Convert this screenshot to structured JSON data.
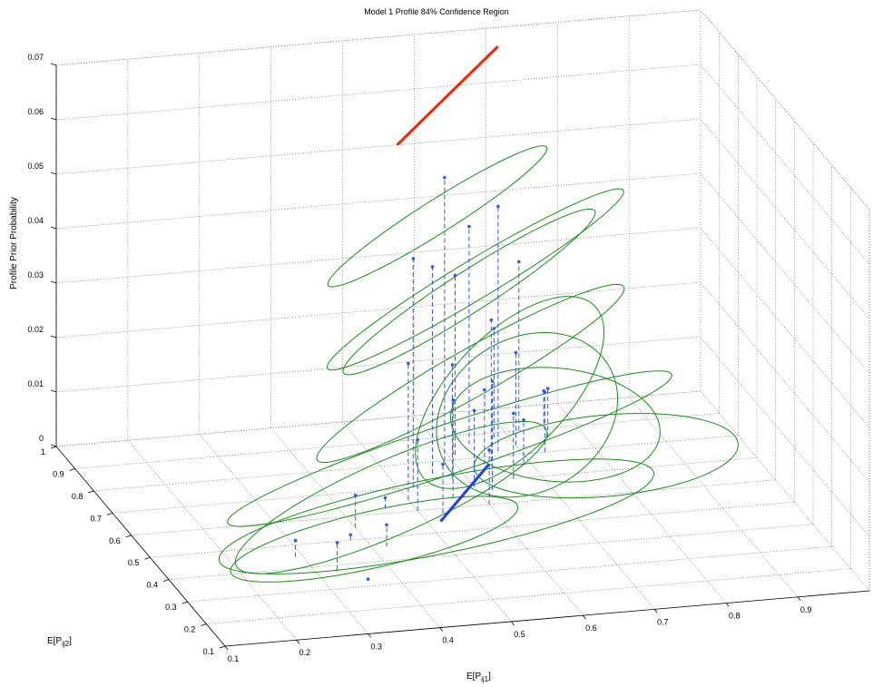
{
  "chart_data": {
    "type": "3d-line",
    "title": "Model 1 Profile 84% Confidence Region",
    "xlabel_main": "E[P",
    "xlabel_sub": "ij1",
    "xlabel_end": "]",
    "ylabel_main": "E[P",
    "ylabel_sub": "ij2",
    "ylabel_end": "]",
    "zlabel": "Profile Prior Probability",
    "x_ticks": [
      "0.1",
      "0.2",
      "0.3",
      "0.4",
      "0.5",
      "0.6",
      "0.7",
      "0.8",
      "0.9"
    ],
    "y_ticks": [
      "0.1",
      "0.2",
      "0.3",
      "0.4",
      "0.5",
      "0.6",
      "0.7",
      "0.8",
      "0.9",
      "1"
    ],
    "z_ticks": [
      "0",
      "0.01",
      "0.02",
      "0.03",
      "0.04",
      "0.05",
      "0.06",
      "0.07"
    ],
    "xlim": [
      0.1,
      1.0
    ],
    "ylim": [
      0.1,
      1.0
    ],
    "zlim": [
      0,
      0.07
    ],
    "grid": true,
    "colors": {
      "profiles": "#1a8c1a",
      "highlight_top": "#ff2200",
      "highlight_bottom": "#1f3cff",
      "stems": "#3355ee"
    },
    "stems": [
      {
        "x": 0.29,
        "y": 0.45,
        "z": 0.003
      },
      {
        "x": 0.33,
        "y": 0.38,
        "z": 0.005
      },
      {
        "x": 0.36,
        "y": 0.33,
        "z": 0.0
      },
      {
        "x": 0.38,
        "y": 0.5,
        "z": 0.001
      },
      {
        "x": 0.4,
        "y": 0.55,
        "z": 0.006
      },
      {
        "x": 0.42,
        "y": 0.46,
        "z": 0.004
      },
      {
        "x": 0.46,
        "y": 0.62,
        "z": 0.002
      },
      {
        "x": 0.5,
        "y": 0.65,
        "z": 0.025
      },
      {
        "x": 0.5,
        "y": 0.6,
        "z": 0.013
      },
      {
        "x": 0.52,
        "y": 0.7,
        "z": 0.042
      },
      {
        "x": 0.53,
        "y": 0.58,
        "z": 0.009
      },
      {
        "x": 0.56,
        "y": 0.75,
        "z": 0.038
      },
      {
        "x": 0.56,
        "y": 0.64,
        "z": 0.018
      },
      {
        "x": 0.58,
        "y": 0.72,
        "z": 0.021
      },
      {
        "x": 0.59,
        "y": 0.8,
        "z": 0.052
      },
      {
        "x": 0.6,
        "y": 0.6,
        "z": 0.01
      },
      {
        "x": 0.6,
        "y": 0.68,
        "z": 0.014
      },
      {
        "x": 0.61,
        "y": 0.82,
        "z": 0.033
      },
      {
        "x": 0.62,
        "y": 0.66,
        "z": 0.02
      },
      {
        "x": 0.63,
        "y": 0.74,
        "z": 0.015
      },
      {
        "x": 0.64,
        "y": 0.86,
        "z": 0.04
      },
      {
        "x": 0.65,
        "y": 0.78,
        "z": 0.026
      },
      {
        "x": 0.66,
        "y": 0.7,
        "z": 0.012
      },
      {
        "x": 0.67,
        "y": 0.82,
        "z": 0.045
      },
      {
        "x": 0.68,
        "y": 0.88,
        "z": 0.02
      },
      {
        "x": 0.69,
        "y": 0.76,
        "z": 0.008
      },
      {
        "x": 0.7,
        "y": 0.84,
        "z": 0.017
      },
      {
        "x": 0.72,
        "y": 0.9,
        "z": 0.031
      },
      {
        "x": 0.73,
        "y": 0.8,
        "z": 0.011
      },
      {
        "x": 0.75,
        "y": 0.86,
        "z": 0.009
      },
      {
        "x": 0.76,
        "y": 0.92,
        "z": 0.006
      }
    ],
    "curves": [
      {
        "cx": 0.45,
        "cy": 0.55,
        "cz": 0.005,
        "rx": 0.3,
        "ry": 0.1,
        "rz": 0.004,
        "rot": 0.6
      },
      {
        "cx": 0.55,
        "cy": 0.62,
        "cz": 0.01,
        "rx": 0.35,
        "ry": 0.08,
        "rz": 0.006,
        "rot": 0.3
      },
      {
        "cx": 0.6,
        "cy": 0.7,
        "cz": 0.02,
        "rx": 0.28,
        "ry": 0.06,
        "rz": 0.008,
        "rot": 0.5
      },
      {
        "cx": 0.62,
        "cy": 0.75,
        "cz": 0.035,
        "rx": 0.25,
        "ry": 0.05,
        "rz": 0.01,
        "rot": 0.4
      },
      {
        "cx": 0.58,
        "cy": 0.8,
        "cz": 0.045,
        "rx": 0.2,
        "ry": 0.04,
        "rz": 0.007,
        "rot": 0.5
      },
      {
        "cx": 0.66,
        "cy": 0.72,
        "cz": 0.015,
        "rx": 0.22,
        "ry": 0.1,
        "rz": 0.009,
        "rot": 0.9
      },
      {
        "cx": 0.7,
        "cy": 0.78,
        "cz": 0.008,
        "rx": 0.24,
        "ry": 0.12,
        "rz": 0.005,
        "rot": 1.2
      },
      {
        "cx": 0.5,
        "cy": 0.5,
        "cz": 0.003,
        "rx": 0.32,
        "ry": 0.14,
        "rz": 0.003,
        "rot": 0.2
      },
      {
        "cx": 0.75,
        "cy": 0.82,
        "cz": 0.004,
        "rx": 0.18,
        "ry": 0.14,
        "rz": 0.003,
        "rot": 1.5
      },
      {
        "cx": 0.64,
        "cy": 0.86,
        "cz": 0.028,
        "rx": 0.22,
        "ry": 0.05,
        "rz": 0.009,
        "rot": 0.45
      },
      {
        "cx": 0.4,
        "cy": 0.45,
        "cz": 0.002,
        "rx": 0.22,
        "ry": 0.1,
        "rz": 0.002,
        "rot": 0.3
      },
      {
        "cx": 0.8,
        "cy": 0.74,
        "cz": 0.001,
        "rx": 0.14,
        "ry": 0.2,
        "rz": 0.001,
        "rot": 2.0
      }
    ],
    "highlight_top": {
      "x_start": 0.53,
      "y_start": 0.82,
      "x_end": 0.7,
      "y_end": 0.94,
      "z_start": 0.058,
      "z_end": 0.069
    },
    "highlight_bottom": {
      "x_start": 0.52,
      "y_start": 0.55,
      "x_end": 0.63,
      "y_end": 0.72,
      "z_start": 0.0,
      "z_end": 0.002
    }
  }
}
